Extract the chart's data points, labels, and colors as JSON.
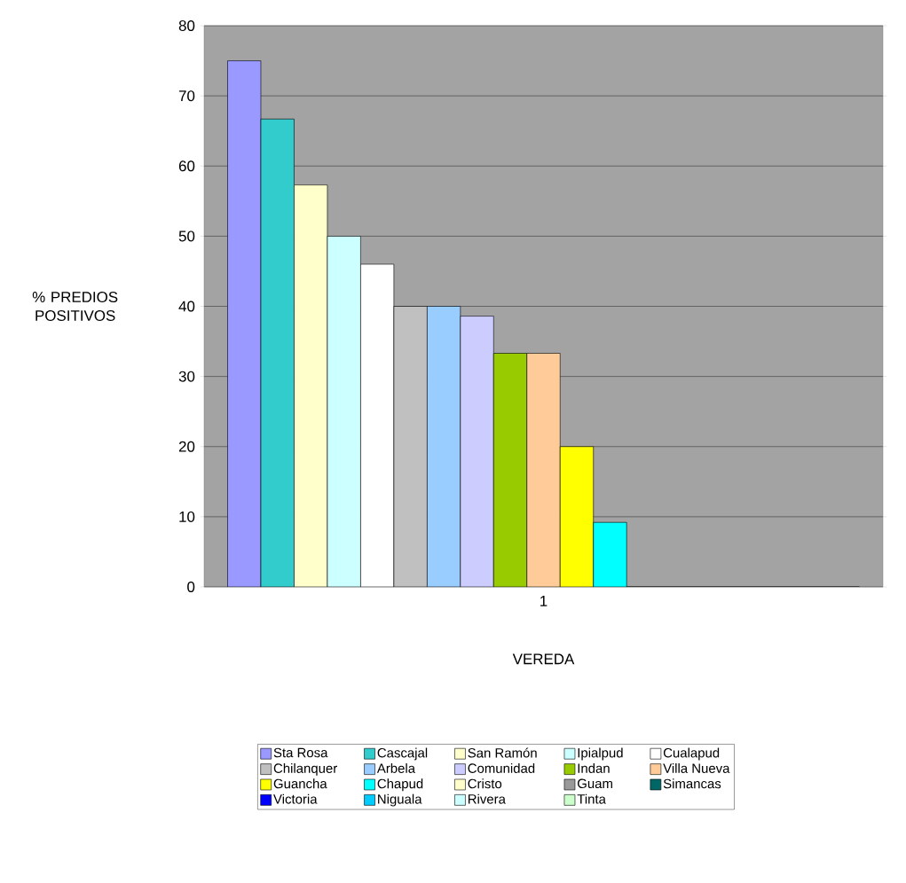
{
  "chart_data": {
    "type": "bar",
    "xlabel": "VEREDA",
    "ylabel": "% PREDIOS POSITIVOS",
    "categories": [
      "1"
    ],
    "ylim": [
      0,
      80
    ],
    "yticks": [
      0,
      10,
      20,
      30,
      40,
      50,
      60,
      70,
      80
    ],
    "grid": "y",
    "legend": "bottom",
    "series": [
      {
        "name": "Sta Rosa",
        "color": "#9999ff",
        "values": [
          75
        ]
      },
      {
        "name": "Cascajal",
        "color": "#33cccc",
        "values": [
          66.7
        ]
      },
      {
        "name": "San Ramón",
        "color": "#ffffcc",
        "values": [
          57.3
        ]
      },
      {
        "name": "Ipialpud",
        "color": "#ccffff",
        "values": [
          50
        ]
      },
      {
        "name": "Cualapud",
        "color": "#ffffff",
        "values": [
          46
        ]
      },
      {
        "name": "Chilanquer",
        "color": "#c0c0c0",
        "values": [
          40
        ]
      },
      {
        "name": "Arbela",
        "color": "#99ccff",
        "values": [
          40
        ]
      },
      {
        "name": "Comunidad",
        "color": "#ccccff",
        "values": [
          38.6
        ]
      },
      {
        "name": "Indan",
        "color": "#99cc00",
        "values": [
          33.3
        ]
      },
      {
        "name": "Villa Nueva",
        "color": "#ffcc99",
        "values": [
          33.3
        ]
      },
      {
        "name": "Guancha",
        "color": "#ffff00",
        "values": [
          20
        ]
      },
      {
        "name": "Chapud",
        "color": "#00ffff",
        "values": [
          9.2
        ]
      },
      {
        "name": "Cristo",
        "color": "#ffffcc",
        "values": [
          0
        ]
      },
      {
        "name": "Guam",
        "color": "#999999",
        "values": [
          0
        ]
      },
      {
        "name": "Simancas",
        "color": "#006666",
        "values": [
          0
        ]
      },
      {
        "name": "Victoria",
        "color": "#0000ff",
        "values": [
          0
        ]
      },
      {
        "name": "Niguala",
        "color": "#00ccff",
        "values": [
          0
        ]
      },
      {
        "name": "Rivera",
        "color": "#ccffff",
        "values": [
          0
        ]
      },
      {
        "name": "Tinta",
        "color": "#ccffcc",
        "values": [
          0
        ]
      }
    ]
  }
}
